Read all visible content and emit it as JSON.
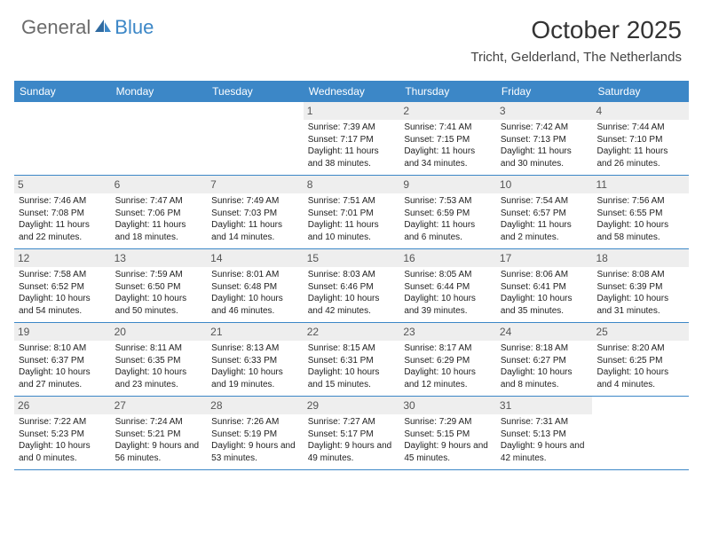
{
  "brand": {
    "text1": "General",
    "text2": "Blue",
    "sail_color": "#2f6aa0",
    "text1_color": "#6b6b6b",
    "text2_color": "#3c87c7"
  },
  "title": "October 2025",
  "location": "Tricht, Gelderland, The Netherlands",
  "header_bg": "#3c87c7",
  "day_bg": "#eeeeee",
  "border_color": "#3c87c7",
  "days": [
    "Sunday",
    "Monday",
    "Tuesday",
    "Wednesday",
    "Thursday",
    "Friday",
    "Saturday"
  ],
  "weeks": [
    [
      null,
      null,
      null,
      {
        "n": "1",
        "sr": "7:39 AM",
        "ss": "7:17 PM",
        "dl": "11 hours and 38 minutes."
      },
      {
        "n": "2",
        "sr": "7:41 AM",
        "ss": "7:15 PM",
        "dl": "11 hours and 34 minutes."
      },
      {
        "n": "3",
        "sr": "7:42 AM",
        "ss": "7:13 PM",
        "dl": "11 hours and 30 minutes."
      },
      {
        "n": "4",
        "sr": "7:44 AM",
        "ss": "7:10 PM",
        "dl": "11 hours and 26 minutes."
      }
    ],
    [
      {
        "n": "5",
        "sr": "7:46 AM",
        "ss": "7:08 PM",
        "dl": "11 hours and 22 minutes."
      },
      {
        "n": "6",
        "sr": "7:47 AM",
        "ss": "7:06 PM",
        "dl": "11 hours and 18 minutes."
      },
      {
        "n": "7",
        "sr": "7:49 AM",
        "ss": "7:03 PM",
        "dl": "11 hours and 14 minutes."
      },
      {
        "n": "8",
        "sr": "7:51 AM",
        "ss": "7:01 PM",
        "dl": "11 hours and 10 minutes."
      },
      {
        "n": "9",
        "sr": "7:53 AM",
        "ss": "6:59 PM",
        "dl": "11 hours and 6 minutes."
      },
      {
        "n": "10",
        "sr": "7:54 AM",
        "ss": "6:57 PM",
        "dl": "11 hours and 2 minutes."
      },
      {
        "n": "11",
        "sr": "7:56 AM",
        "ss": "6:55 PM",
        "dl": "10 hours and 58 minutes."
      }
    ],
    [
      {
        "n": "12",
        "sr": "7:58 AM",
        "ss": "6:52 PM",
        "dl": "10 hours and 54 minutes."
      },
      {
        "n": "13",
        "sr": "7:59 AM",
        "ss": "6:50 PM",
        "dl": "10 hours and 50 minutes."
      },
      {
        "n": "14",
        "sr": "8:01 AM",
        "ss": "6:48 PM",
        "dl": "10 hours and 46 minutes."
      },
      {
        "n": "15",
        "sr": "8:03 AM",
        "ss": "6:46 PM",
        "dl": "10 hours and 42 minutes."
      },
      {
        "n": "16",
        "sr": "8:05 AM",
        "ss": "6:44 PM",
        "dl": "10 hours and 39 minutes."
      },
      {
        "n": "17",
        "sr": "8:06 AM",
        "ss": "6:41 PM",
        "dl": "10 hours and 35 minutes."
      },
      {
        "n": "18",
        "sr": "8:08 AM",
        "ss": "6:39 PM",
        "dl": "10 hours and 31 minutes."
      }
    ],
    [
      {
        "n": "19",
        "sr": "8:10 AM",
        "ss": "6:37 PM",
        "dl": "10 hours and 27 minutes."
      },
      {
        "n": "20",
        "sr": "8:11 AM",
        "ss": "6:35 PM",
        "dl": "10 hours and 23 minutes."
      },
      {
        "n": "21",
        "sr": "8:13 AM",
        "ss": "6:33 PM",
        "dl": "10 hours and 19 minutes."
      },
      {
        "n": "22",
        "sr": "8:15 AM",
        "ss": "6:31 PM",
        "dl": "10 hours and 15 minutes."
      },
      {
        "n": "23",
        "sr": "8:17 AM",
        "ss": "6:29 PM",
        "dl": "10 hours and 12 minutes."
      },
      {
        "n": "24",
        "sr": "8:18 AM",
        "ss": "6:27 PM",
        "dl": "10 hours and 8 minutes."
      },
      {
        "n": "25",
        "sr": "8:20 AM",
        "ss": "6:25 PM",
        "dl": "10 hours and 4 minutes."
      }
    ],
    [
      {
        "n": "26",
        "sr": "7:22 AM",
        "ss": "5:23 PM",
        "dl": "10 hours and 0 minutes."
      },
      {
        "n": "27",
        "sr": "7:24 AM",
        "ss": "5:21 PM",
        "dl": "9 hours and 56 minutes."
      },
      {
        "n": "28",
        "sr": "7:26 AM",
        "ss": "5:19 PM",
        "dl": "9 hours and 53 minutes."
      },
      {
        "n": "29",
        "sr": "7:27 AM",
        "ss": "5:17 PM",
        "dl": "9 hours and 49 minutes."
      },
      {
        "n": "30",
        "sr": "7:29 AM",
        "ss": "5:15 PM",
        "dl": "9 hours and 45 minutes."
      },
      {
        "n": "31",
        "sr": "7:31 AM",
        "ss": "5:13 PM",
        "dl": "9 hours and 42 minutes."
      },
      null
    ]
  ],
  "labels": {
    "sunrise": "Sunrise:",
    "sunset": "Sunset:",
    "daylight": "Daylight:"
  }
}
